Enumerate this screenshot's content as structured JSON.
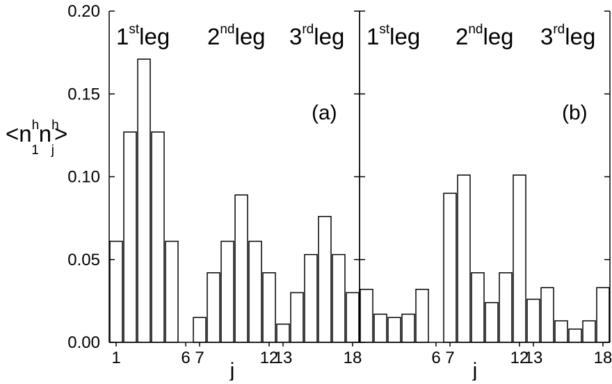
{
  "chart_data": {
    "type": "bar",
    "y_ticks": [
      {
        "value": 0.0,
        "label": "0.00"
      },
      {
        "value": 0.05,
        "label": "0.05"
      },
      {
        "value": 0.1,
        "label": "0.10"
      },
      {
        "value": 0.15,
        "label": "0.15"
      },
      {
        "value": 0.2,
        "label": "0.20"
      }
    ],
    "ylim": [
      0,
      0.2
    ],
    "xlim": [
      0.5,
      18.5
    ],
    "xlabel": "j",
    "ylabel": {
      "base": "<n",
      "sup1": "h",
      "sub1": "1",
      "mid": "n",
      "sup2": "h",
      "sub2": "j",
      "end": ">"
    },
    "leg_labels": [
      {
        "number": "1",
        "suffix": "st",
        "word": "leg"
      },
      {
        "number": "2",
        "suffix": "nd",
        "word": "leg"
      },
      {
        "number": "3",
        "suffix": "rd",
        "word": "leg"
      }
    ],
    "panels": [
      {
        "label": "(a)",
        "x_ticks": [
          "1",
          "6",
          "7",
          "12",
          "13",
          "18"
        ],
        "x_tick_positions": [
          1,
          6,
          7,
          12,
          13,
          18
        ],
        "bars": [
          {
            "j": 1,
            "value": 0.061
          },
          {
            "j": 2,
            "value": 0.127
          },
          {
            "j": 3,
            "value": 0.171
          },
          {
            "j": 4,
            "value": 0.127
          },
          {
            "j": 5,
            "value": 0.061
          },
          {
            "j": 7,
            "value": 0.015
          },
          {
            "j": 8,
            "value": 0.042
          },
          {
            "j": 9,
            "value": 0.061
          },
          {
            "j": 10,
            "value": 0.089
          },
          {
            "j": 11,
            "value": 0.061
          },
          {
            "j": 12,
            "value": 0.042
          },
          {
            "j": 13,
            "value": 0.011
          },
          {
            "j": 14,
            "value": 0.03
          },
          {
            "j": 15,
            "value": 0.053
          },
          {
            "j": 16,
            "value": 0.076
          },
          {
            "j": 17,
            "value": 0.053
          },
          {
            "j": 18,
            "value": 0.03
          }
        ]
      },
      {
        "label": "(b)",
        "x_ticks": [
          "6",
          "7",
          "12",
          "13",
          "18"
        ],
        "x_tick_positions": [
          6,
          7,
          12,
          13,
          18
        ],
        "bars": [
          {
            "j": 1,
            "value": 0.032
          },
          {
            "j": 2,
            "value": 0.017
          },
          {
            "j": 3,
            "value": 0.015
          },
          {
            "j": 4,
            "value": 0.017
          },
          {
            "j": 5,
            "value": 0.032
          },
          {
            "j": 7,
            "value": 0.09
          },
          {
            "j": 8,
            "value": 0.101
          },
          {
            "j": 9,
            "value": 0.042
          },
          {
            "j": 10,
            "value": 0.024
          },
          {
            "j": 11,
            "value": 0.042
          },
          {
            "j": 12,
            "value": 0.101
          },
          {
            "j": 13,
            "value": 0.026
          },
          {
            "j": 14,
            "value": 0.033
          },
          {
            "j": 15,
            "value": 0.013
          },
          {
            "j": 16,
            "value": 0.008
          },
          {
            "j": 17,
            "value": 0.013
          },
          {
            "j": 18,
            "value": 0.033
          }
        ]
      }
    ]
  }
}
